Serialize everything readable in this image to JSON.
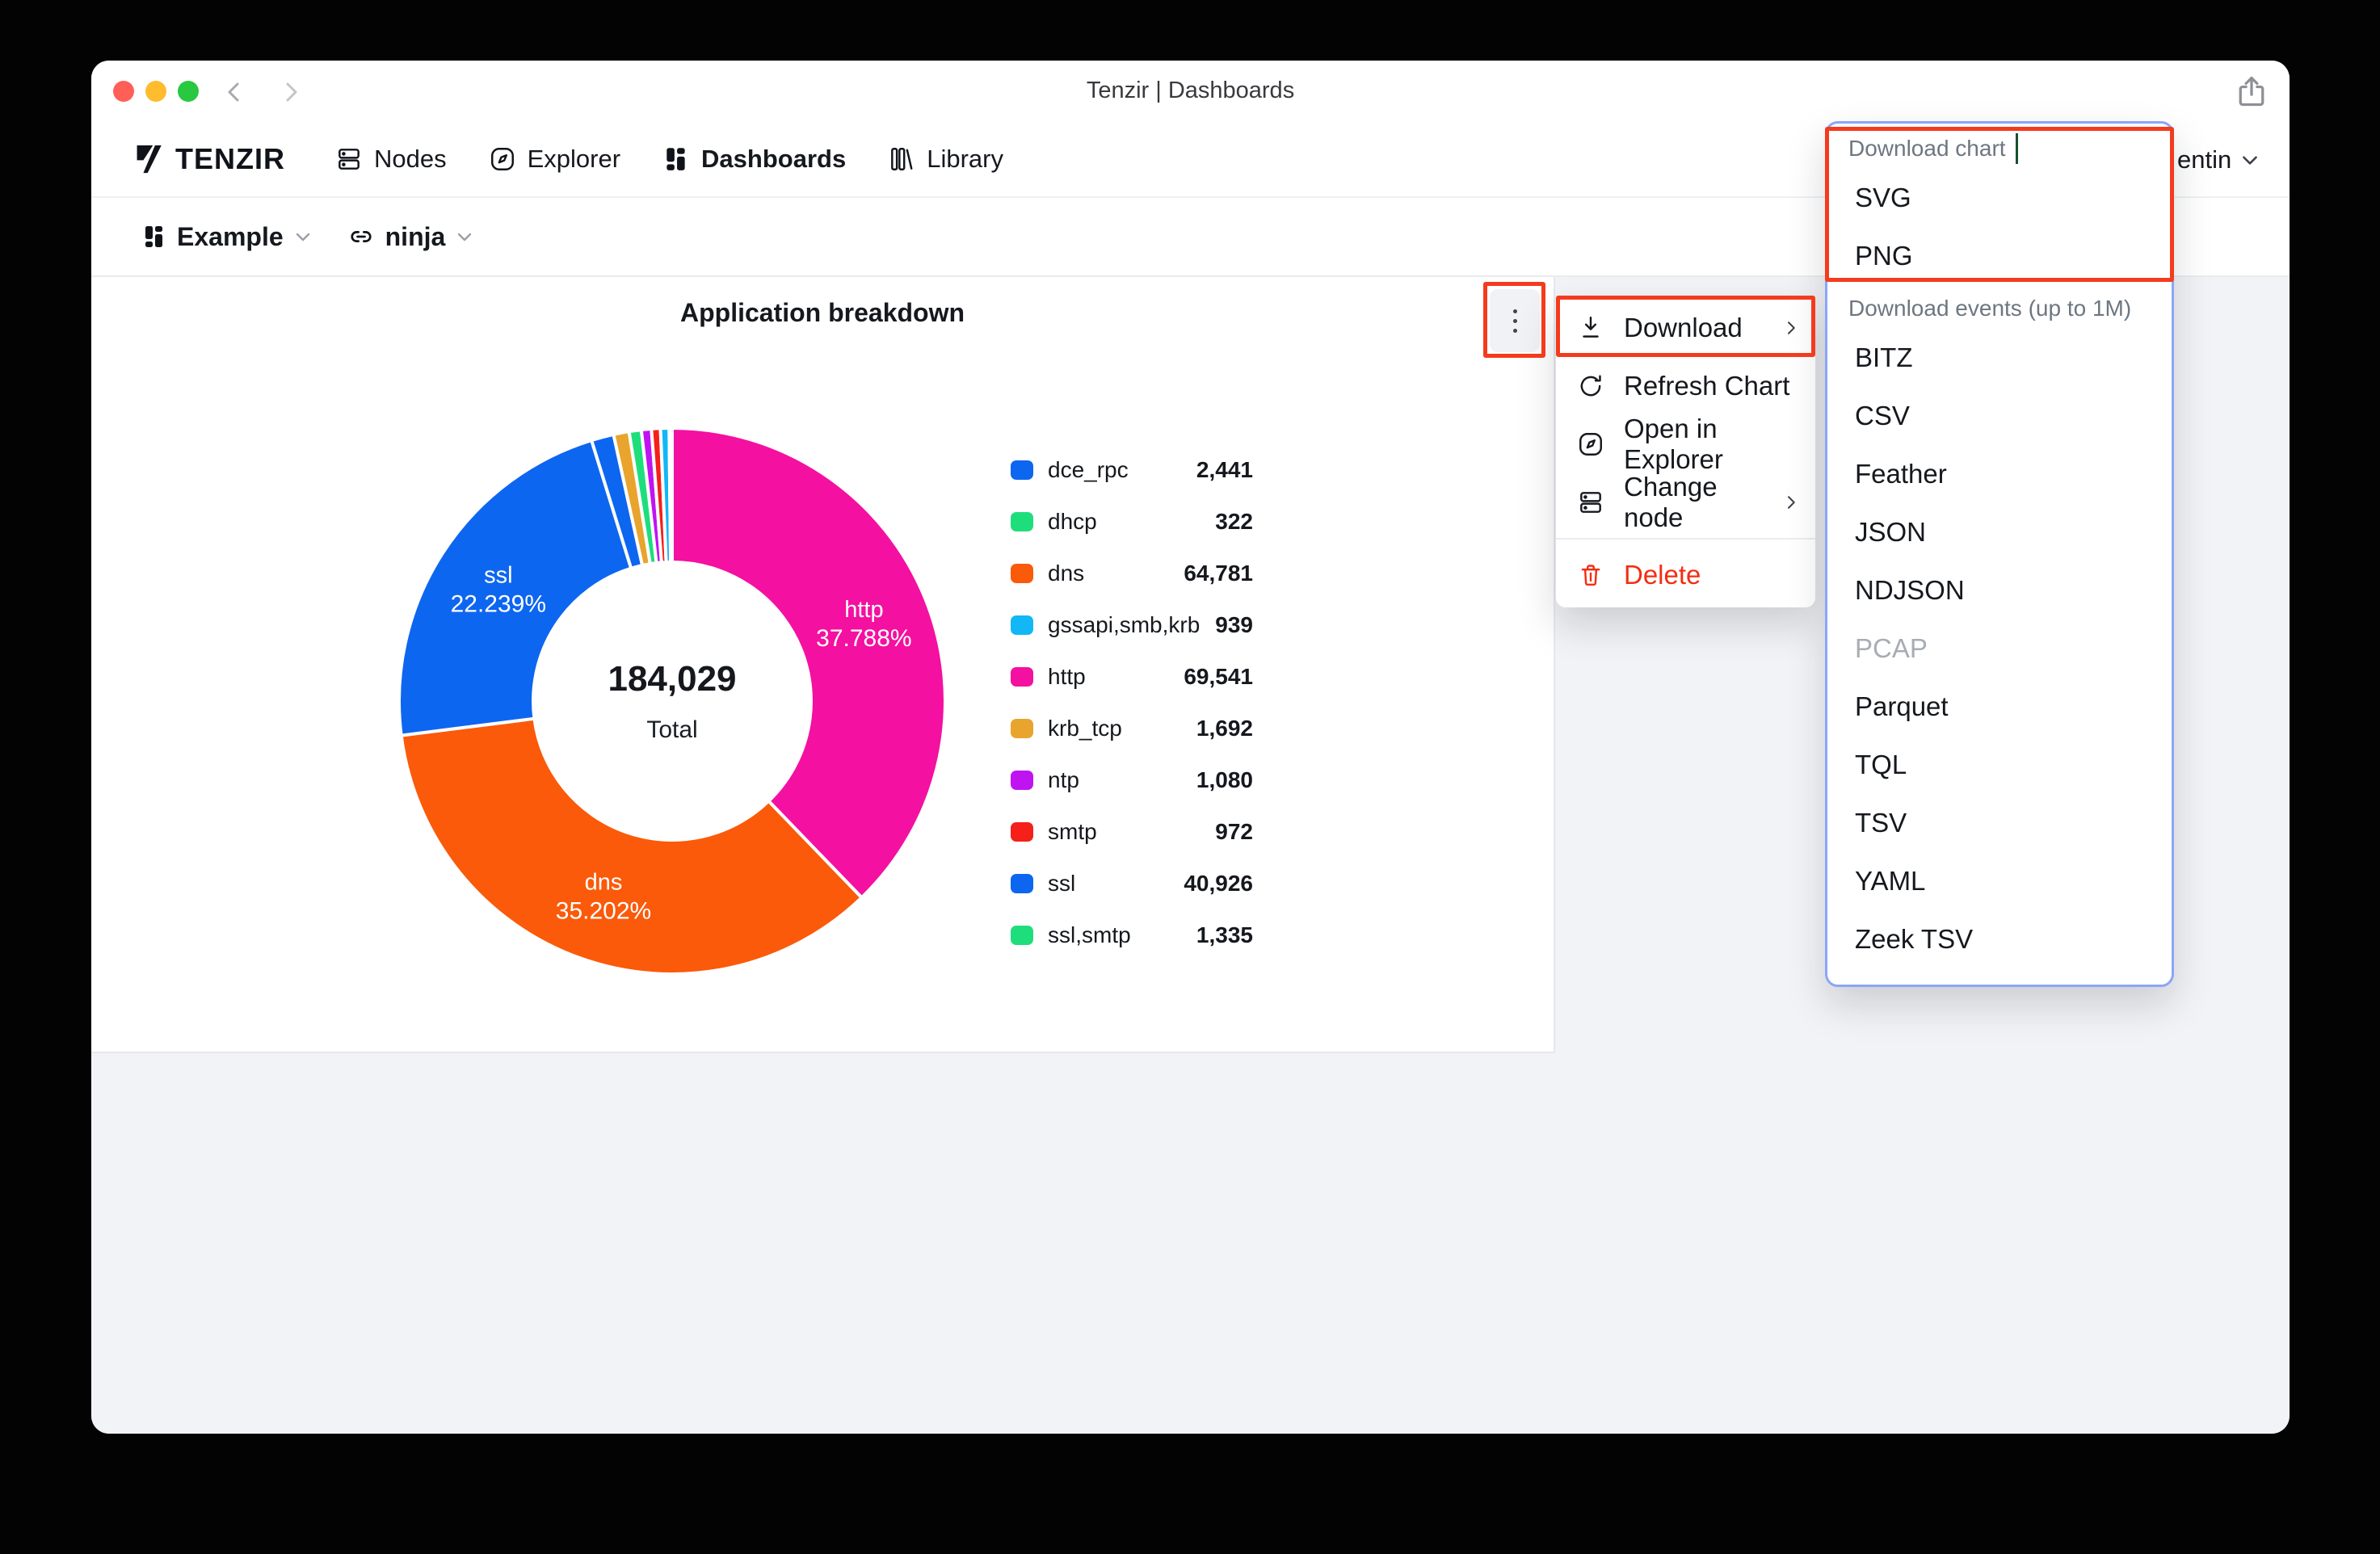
{
  "window": {
    "title": "Tenzir | Dashboards"
  },
  "nav": {
    "brand": "TENZIR",
    "items": [
      {
        "label": "Nodes",
        "icon": "server-icon",
        "active": false
      },
      {
        "label": "Explorer",
        "icon": "compass-icon",
        "active": false
      },
      {
        "label": "Dashboards",
        "icon": "dashboard-grid-icon",
        "active": true
      },
      {
        "label": "Library",
        "icon": "library-icon",
        "active": false
      }
    ],
    "user": "entin"
  },
  "toolbar": {
    "dashboard_label": "Example",
    "node_label": "ninja"
  },
  "card": {
    "title": "Application breakdown"
  },
  "chart_data": {
    "type": "pie",
    "title": "Application breakdown",
    "total": 184029,
    "total_display": "184,029",
    "total_label": "Total",
    "legend_position": "right",
    "slices": [
      {
        "name": "http",
        "value": 69541,
        "display": "69,541",
        "pct_label": "37.788%",
        "color": "#F410A1"
      },
      {
        "name": "dns",
        "value": 64781,
        "display": "64,781",
        "pct_label": "35.202%",
        "color": "#FA5A0A"
      },
      {
        "name": "ssl",
        "value": 40926,
        "display": "40,926",
        "pct_label": "22.239%",
        "color": "#0D66F0"
      },
      {
        "name": "dce_rpc",
        "value": 2441,
        "display": "2,441",
        "color": "#0D66F0"
      },
      {
        "name": "krb_tcp",
        "value": 1692,
        "display": "1,692",
        "color": "#E9A42E"
      },
      {
        "name": "ssl,smtp",
        "value": 1335,
        "display": "1,335",
        "color": "#1EDE7C"
      },
      {
        "name": "ntp",
        "value": 1080,
        "display": "1,080",
        "color": "#C013F2"
      },
      {
        "name": "smtp",
        "value": 972,
        "display": "972",
        "color": "#F5201A"
      },
      {
        "name": "gssapi,smb,krb",
        "value": 939,
        "display": "939",
        "color": "#12B7F6"
      },
      {
        "name": "dhcp",
        "value": 322,
        "display": "322",
        "color": "#1EDE7C"
      }
    ],
    "legend_order": [
      "dce_rpc",
      "dhcp",
      "dns",
      "gssapi,smb,krb",
      "http",
      "krb_tcp",
      "ntp",
      "smtp",
      "ssl",
      "ssl,smtp"
    ]
  },
  "context_menu": {
    "items": [
      {
        "label": "Download",
        "icon": "download-icon",
        "chevron": true,
        "highlighted": true
      },
      {
        "label": "Refresh Chart",
        "icon": "refresh-icon"
      },
      {
        "label": "Open in Explorer",
        "icon": "compass-icon"
      },
      {
        "label": "Change node",
        "icon": "server-icon",
        "chevron": true
      },
      {
        "label": "Delete",
        "icon": "trash-icon",
        "danger": true,
        "divider_before": true
      }
    ]
  },
  "download_menu": {
    "sections": [
      {
        "header": "Download chart",
        "has_text_cursor": true,
        "items": [
          {
            "label": "SVG"
          },
          {
            "label": "PNG"
          }
        ]
      },
      {
        "header": "Download events (up to 1M)",
        "items": [
          {
            "label": "BITZ"
          },
          {
            "label": "CSV"
          },
          {
            "label": "Feather"
          },
          {
            "label": "JSON"
          },
          {
            "label": "NDJSON"
          },
          {
            "label": "PCAP",
            "disabled": true
          },
          {
            "label": "Parquet"
          },
          {
            "label": "TQL"
          },
          {
            "label": "TSV"
          },
          {
            "label": "YAML"
          },
          {
            "label": "Zeek TSV"
          }
        ]
      }
    ]
  },
  "colors": {
    "annotation_red": "#F43B1E",
    "focus_blue": "#8AA6F8",
    "danger_red": "#F42D12",
    "traffic_close": "#FF5F57",
    "traffic_min": "#FEBC2E",
    "traffic_max": "#28C840",
    "main_bg": "#F2F3F6"
  }
}
